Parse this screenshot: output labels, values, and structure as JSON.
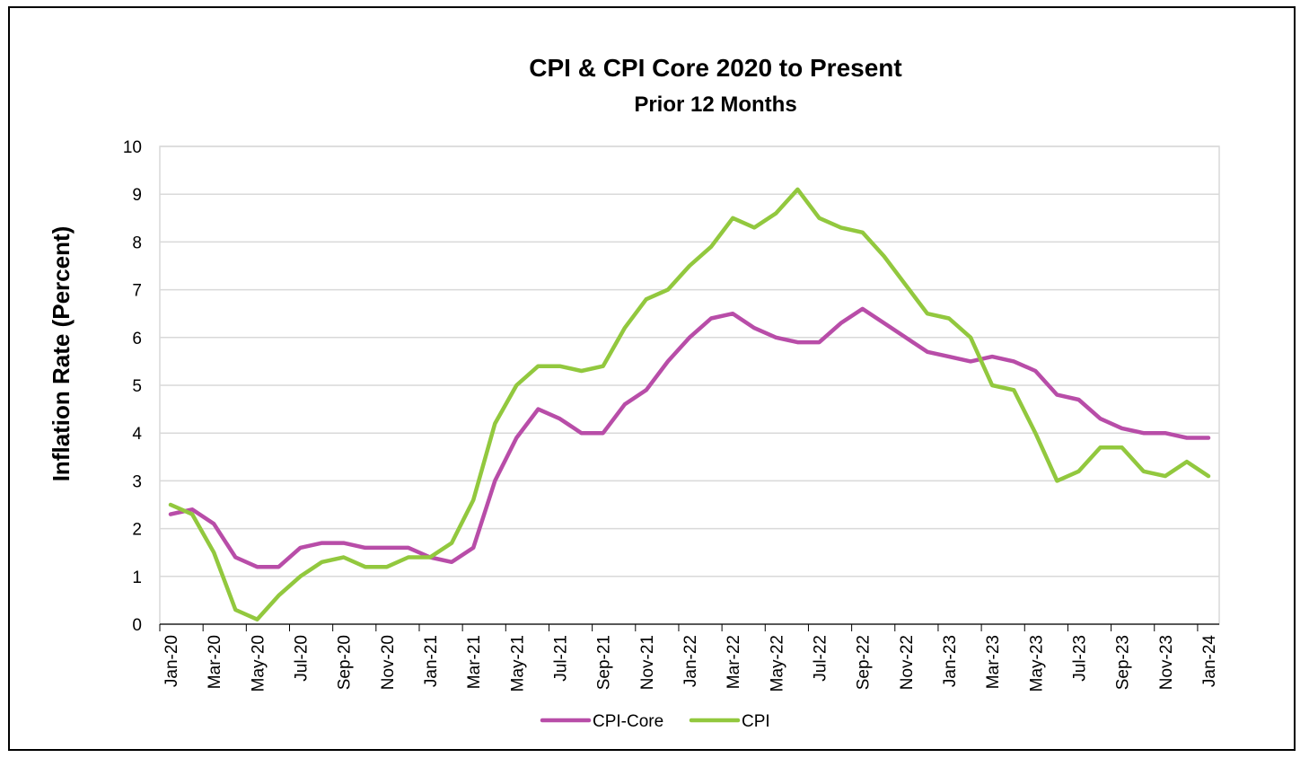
{
  "chart_data": {
    "type": "line",
    "title": "CPI & CPI Core  2020 to Present",
    "subtitle": "Prior 12 Months",
    "xlabel": "",
    "ylabel": "Inflation Rate (Percent)",
    "ylim": [
      0,
      10
    ],
    "yticks": [
      0,
      1,
      2,
      3,
      4,
      5,
      6,
      7,
      8,
      9,
      10
    ],
    "grid": "horizontal",
    "legend_position": "bottom",
    "categories": [
      "Jan-20",
      "Feb-20",
      "Mar-20",
      "Apr-20",
      "May-20",
      "Jun-20",
      "Jul-20",
      "Aug-20",
      "Sep-20",
      "Oct-20",
      "Nov-20",
      "Dec-20",
      "Jan-21",
      "Feb-21",
      "Mar-21",
      "Apr-21",
      "May-21",
      "Jun-21",
      "Jul-21",
      "Aug-21",
      "Sep-21",
      "Oct-21",
      "Nov-21",
      "Dec-21",
      "Jan-22",
      "Feb-22",
      "Mar-22",
      "Apr-22",
      "May-22",
      "Jun-22",
      "Jul-22",
      "Aug-22",
      "Sep-22",
      "Oct-22",
      "Nov-22",
      "Dec-22",
      "Jan-23",
      "Feb-23",
      "Mar-23",
      "Apr-23",
      "May-23",
      "Jun-23",
      "Jul-23",
      "Aug-23",
      "Sep-23",
      "Oct-23",
      "Nov-23",
      "Dec-23",
      "Jan-24"
    ],
    "tick_labels": [
      "Jan-20",
      "Mar-20",
      "May-20",
      "Jul-20",
      "Sep-20",
      "Nov-20",
      "Jan-21",
      "Mar-21",
      "May-21",
      "Jul-21",
      "Sep-21",
      "Nov-21",
      "Jan-22",
      "Mar-22",
      "May-22",
      "Jul-22",
      "Sep-22",
      "Nov-22",
      "Jan-23",
      "Mar-23",
      "May-23",
      "Jul-23",
      "Sep-23",
      "Nov-23",
      "Jan-24"
    ],
    "series": [
      {
        "name": "CPI-Core",
        "color": "#B84DA8",
        "values": [
          2.3,
          2.4,
          2.1,
          1.4,
          1.2,
          1.2,
          1.6,
          1.7,
          1.7,
          1.6,
          1.6,
          1.6,
          1.4,
          1.3,
          1.6,
          3.0,
          3.9,
          4.5,
          4.3,
          4.0,
          4.0,
          4.6,
          4.9,
          5.5,
          6.0,
          6.4,
          6.5,
          6.2,
          6.0,
          5.9,
          5.9,
          6.3,
          6.6,
          6.3,
          6.0,
          5.7,
          5.6,
          5.5,
          5.6,
          5.5,
          5.3,
          4.8,
          4.7,
          4.3,
          4.1,
          4.0,
          4.0,
          3.9,
          3.9
        ]
      },
      {
        "name": "CPI",
        "color": "#92C83E",
        "values": [
          2.5,
          2.3,
          1.5,
          0.3,
          0.1,
          0.6,
          1.0,
          1.3,
          1.4,
          1.2,
          1.2,
          1.4,
          1.4,
          1.7,
          2.6,
          4.2,
          5.0,
          5.4,
          5.4,
          5.3,
          5.4,
          6.2,
          6.8,
          7.0,
          7.5,
          7.9,
          8.5,
          8.3,
          8.6,
          9.1,
          8.5,
          8.3,
          8.2,
          7.7,
          7.1,
          6.5,
          6.4,
          6.0,
          5.0,
          4.9,
          4.0,
          3.0,
          3.2,
          3.7,
          3.7,
          3.2,
          3.1,
          3.4,
          3.1
        ]
      }
    ]
  }
}
